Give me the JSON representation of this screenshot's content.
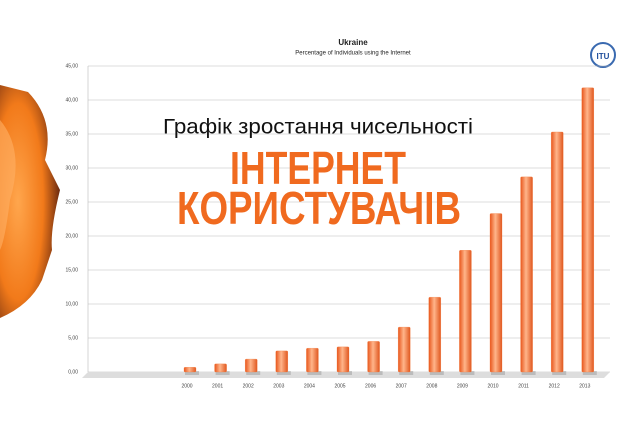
{
  "chart_data": {
    "type": "bar",
    "title": "Ukraine",
    "subtitle": "Percentage of Individuals using the Internet",
    "headline": "Графік зростання чисельності",
    "banner": [
      "ІНТЕРНЕТ",
      "КОРИСТУВАЧІВ"
    ],
    "logo": "ITU",
    "categories": [
      "2000",
      "2001",
      "2002",
      "2003",
      "2004",
      "2005",
      "2006",
      "2007",
      "2008",
      "2009",
      "2010",
      "2011",
      "2012",
      "2013"
    ],
    "values": [
      0.7,
      1.2,
      1.9,
      3.1,
      3.5,
      3.7,
      4.5,
      6.6,
      11,
      17.9,
      23.3,
      28.7,
      35.3,
      41.8
    ],
    "color": "#f47a3a",
    "ylim": [
      0,
      45
    ],
    "yticks": [
      {
        "value": 0,
        "label": "0,00"
      },
      {
        "value": 5,
        "label": "5,00"
      },
      {
        "value": 10,
        "label": "10,00"
      },
      {
        "value": 15,
        "label": "15,00"
      },
      {
        "value": 20,
        "label": "20,00"
      },
      {
        "value": 25,
        "label": "25,00"
      },
      {
        "value": 30,
        "label": "30,00"
      },
      {
        "value": 35,
        "label": "35,00"
      },
      {
        "value": 40,
        "label": "40,00"
      },
      {
        "value": 45,
        "label": "45,00"
      }
    ],
    "grid": true
  }
}
